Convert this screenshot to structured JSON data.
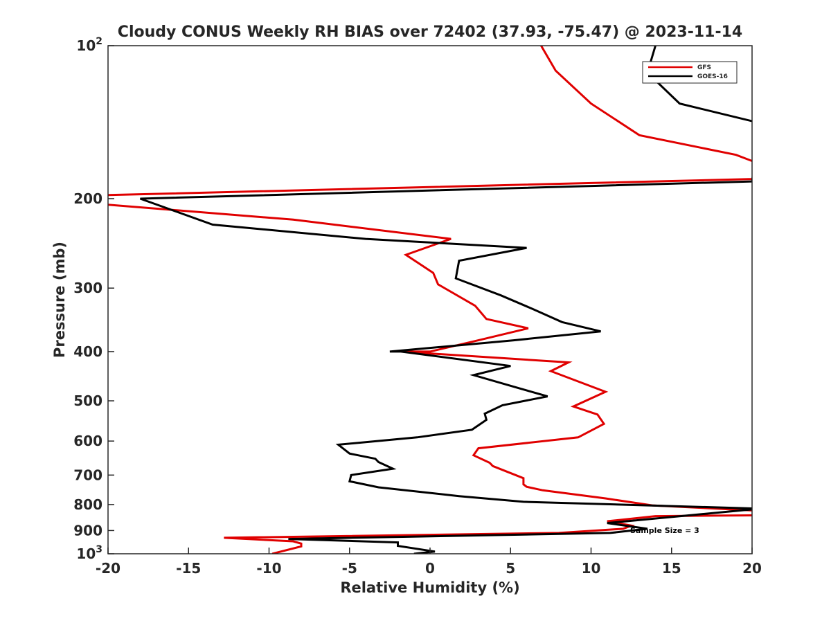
{
  "chart_data": {
    "type": "line",
    "title": "Cloudy CONUS Weekly RH BIAS over 72402 (37.93, -75.47) @ 2023-11-14",
    "xlabel": "Relative Humidity (%)",
    "ylabel": "Pressure (mb)",
    "xlim": [
      -20,
      20
    ],
    "ylim": [
      100,
      1000
    ],
    "yscale": "log",
    "y_reversed": true,
    "grid": false,
    "legend_position": "top-right",
    "x_ticks": [
      -20,
      -15,
      -10,
      -5,
      0,
      5,
      10,
      15,
      20
    ],
    "x_tick_labels": [
      "-20",
      "-15",
      "-10",
      "-5",
      "0",
      "5",
      "10",
      "15",
      "20"
    ],
    "y_ticks": [
      100,
      200,
      300,
      400,
      500,
      600,
      700,
      800,
      900,
      1000
    ],
    "y_tick_labels": [
      "10^2",
      "200",
      "300",
      "400",
      "500",
      "600",
      "700",
      "800",
      "900",
      "10^3"
    ],
    "annotation": "Sample Size = 3",
    "series": [
      {
        "name": "GFS",
        "color": "#e00000",
        "x": [
          6.9,
          7.8,
          10.0,
          13.0,
          19.0,
          20.5,
          20.0,
          -20.5,
          -20.5,
          -8.5,
          1.3,
          -1.5,
          0.2,
          0.5,
          2.8,
          3.5,
          6.1,
          3.0,
          0.0,
          -1.8,
          8.6,
          7.5,
          10.9,
          8.9,
          10.4,
          10.8,
          9.2,
          3.0,
          2.7,
          3.7,
          3.9,
          5.8,
          5.8,
          6.0,
          7.0,
          10.9,
          13.8,
          20.5,
          20.5,
          14.0,
          11.0,
          12.5,
          12.0,
          8.0,
          -12.8,
          -8.5,
          -8.0,
          -8.0,
          -9.8
        ],
        "y": [
          100,
          112,
          130,
          150,
          164,
          171,
          183,
          197,
          205,
          220,
          240,
          258,
          280,
          295,
          325,
          345,
          360,
          380,
          400,
          400,
          420,
          437,
          480,
          513,
          532,
          555,
          590,
          620,
          640,
          662,
          672,
          710,
          730,
          738,
          750,
          778,
          803,
          823,
          840,
          843,
          863,
          880,
          893,
          910,
          930,
          945,
          955,
          967,
          1000
        ]
      },
      {
        "name": "GOES-16",
        "color": "#000000",
        "x": [
          14.0,
          13.5,
          15.5,
          20.5,
          20.5,
          20.0,
          -18.0,
          -13.5,
          -4.0,
          6.0,
          1.8,
          1.6,
          4.4,
          6.4,
          8.2,
          10.6,
          5.2,
          -2.5,
          -1.8,
          5.0,
          2.7,
          5.3,
          7.3,
          4.5,
          3.4,
          3.5,
          2.6,
          -0.8,
          -5.7,
          -5.0,
          -3.4,
          -3.2,
          -2.3,
          -4.9,
          -5.0,
          -3.2,
          1.8,
          5.8,
          20.5,
          11.0,
          13.5,
          11.2,
          -8.8,
          -2.0,
          -2.0,
          0.3,
          -1.0
        ],
        "y": [
          100,
          113,
          130,
          142,
          142,
          185,
          200,
          225,
          240,
          250,
          265,
          287,
          310,
          330,
          350,
          365,
          380,
          400,
          400,
          427,
          445,
          470,
          490,
          510,
          530,
          545,
          570,
          590,
          610,
          635,
          650,
          660,
          680,
          700,
          720,
          740,
          770,
          790,
          815,
          870,
          893,
          910,
          935,
          950,
          965,
          990,
          1000
        ]
      }
    ]
  }
}
